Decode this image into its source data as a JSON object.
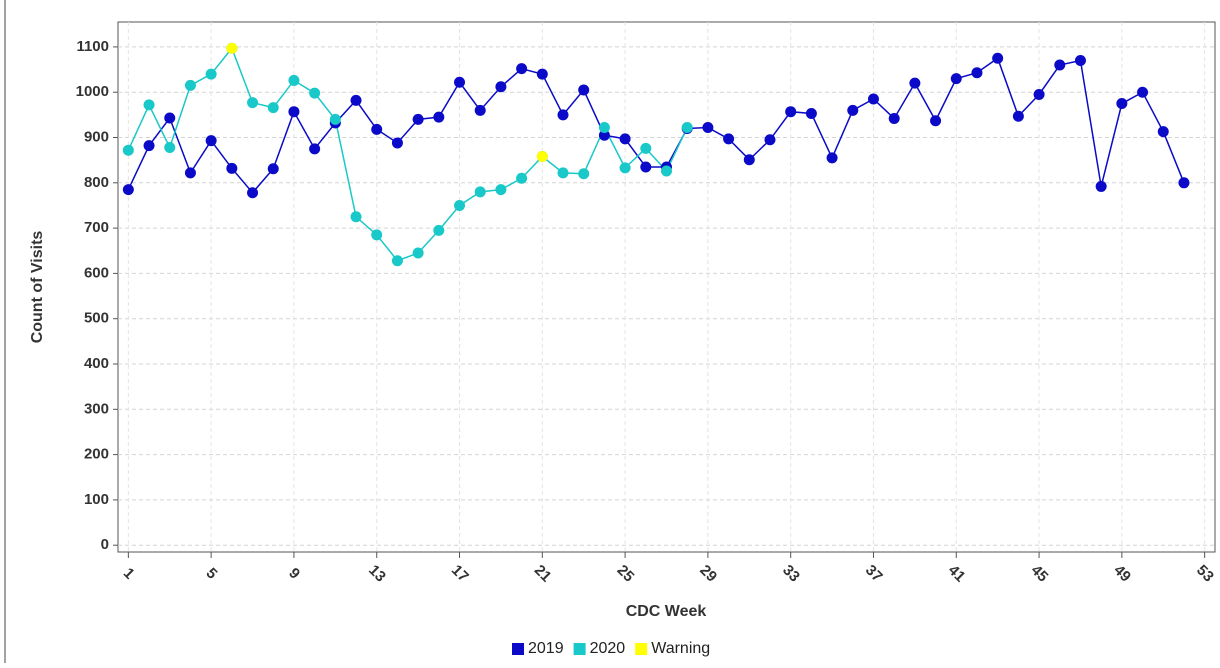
{
  "chart_data": {
    "type": "line",
    "x_label": "CDC Week",
    "y_label": "Count of Visits",
    "x": [
      1,
      2,
      3,
      4,
      5,
      6,
      7,
      8,
      9,
      10,
      11,
      12,
      13,
      14,
      15,
      16,
      17,
      18,
      19,
      20,
      21,
      22,
      23,
      24,
      25,
      26,
      27,
      28,
      29,
      30,
      31,
      32,
      33,
      34,
      35,
      36,
      37,
      38,
      39,
      40,
      41,
      42,
      43,
      44,
      45,
      46,
      47,
      48,
      49,
      50,
      51,
      52
    ],
    "series": [
      {
        "name": "2019",
        "color": "#0a0ac8",
        "show_line": true,
        "values": [
          785,
          882,
          943,
          822,
          893,
          832,
          778,
          831,
          957,
          875,
          932,
          982,
          918,
          888,
          940,
          945,
          1022,
          960,
          1012,
          1052,
          1040,
          950,
          1005,
          905,
          897,
          835,
          835,
          920,
          922,
          897,
          851,
          895,
          957,
          953,
          855,
          960,
          985,
          942,
          1020,
          937,
          1030,
          1043,
          1075,
          947,
          995,
          1060,
          1070,
          792,
          975,
          1000,
          913,
          800
        ]
      },
      {
        "name": "2020",
        "color": "#19c8c8",
        "show_line": true,
        "values": [
          872,
          972,
          878,
          1015,
          1040,
          1097,
          977,
          966,
          1026,
          998,
          940,
          725,
          685,
          628,
          645,
          695,
          750,
          780,
          785,
          810,
          858,
          822,
          820,
          922,
          833,
          876,
          826,
          922,
          null,
          null,
          null,
          null,
          null,
          null,
          null,
          null,
          null,
          null,
          null,
          null,
          null,
          null,
          null,
          null,
          null,
          null,
          null,
          null,
          null,
          null,
          null,
          null
        ]
      },
      {
        "name": "Warning",
        "color": "#ffff00",
        "show_line": false,
        "values": [
          null,
          null,
          null,
          null,
          null,
          1097,
          null,
          null,
          null,
          null,
          null,
          null,
          null,
          null,
          null,
          null,
          null,
          null,
          null,
          null,
          858,
          null,
          null,
          null,
          null,
          null,
          null,
          null,
          null,
          null,
          null,
          null,
          null,
          null,
          null,
          null,
          null,
          null,
          null,
          null,
          null,
          null,
          null,
          null,
          null,
          null,
          null,
          null,
          null,
          null,
          null,
          null
        ]
      }
    ],
    "xlim": [
      0.5,
      53.5
    ],
    "xticks": [
      1,
      5,
      9,
      13,
      17,
      21,
      25,
      29,
      33,
      37,
      41,
      45,
      49,
      53
    ],
    "ylim": [
      -15,
      1155
    ],
    "yticks": [
      0,
      100,
      200,
      300,
      400,
      500,
      600,
      700,
      800,
      900,
      1000,
      1100
    ],
    "grid": true,
    "legend": "bottom"
  }
}
